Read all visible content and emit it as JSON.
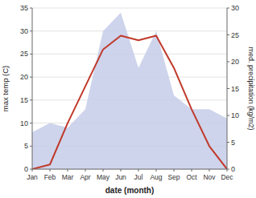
{
  "chart_data": {
    "type": "line",
    "x_label": "date (month)",
    "y_label": "max temp (C)",
    "y2_label": "med. precipitation (kg/m2)",
    "categories": [
      "Jan",
      "Feb",
      "Mar",
      "Apr",
      "May",
      "Jun",
      "Jul",
      "Aug",
      "Sep",
      "Oct",
      "Nov",
      "Dec"
    ],
    "series": [
      {
        "type": "area",
        "color": "#c5cce8",
        "values": [
          8,
          10,
          9,
          13,
          30,
          34,
          22,
          30,
          16,
          13,
          13,
          11
        ]
      },
      {
        "type": "line",
        "color": "#c0392b",
        "values": [
          0,
          1,
          10,
          18,
          26,
          29,
          28,
          29,
          22,
          13,
          5,
          0
        ]
      }
    ],
    "ylim": [
      0,
      35
    ],
    "yticks": [
      0,
      5,
      10,
      15,
      20,
      25,
      30,
      35
    ],
    "y2lim": [
      0,
      30
    ],
    "y2ticks": [
      0,
      5,
      10,
      15,
      20,
      25,
      30
    ],
    "grid": true
  }
}
